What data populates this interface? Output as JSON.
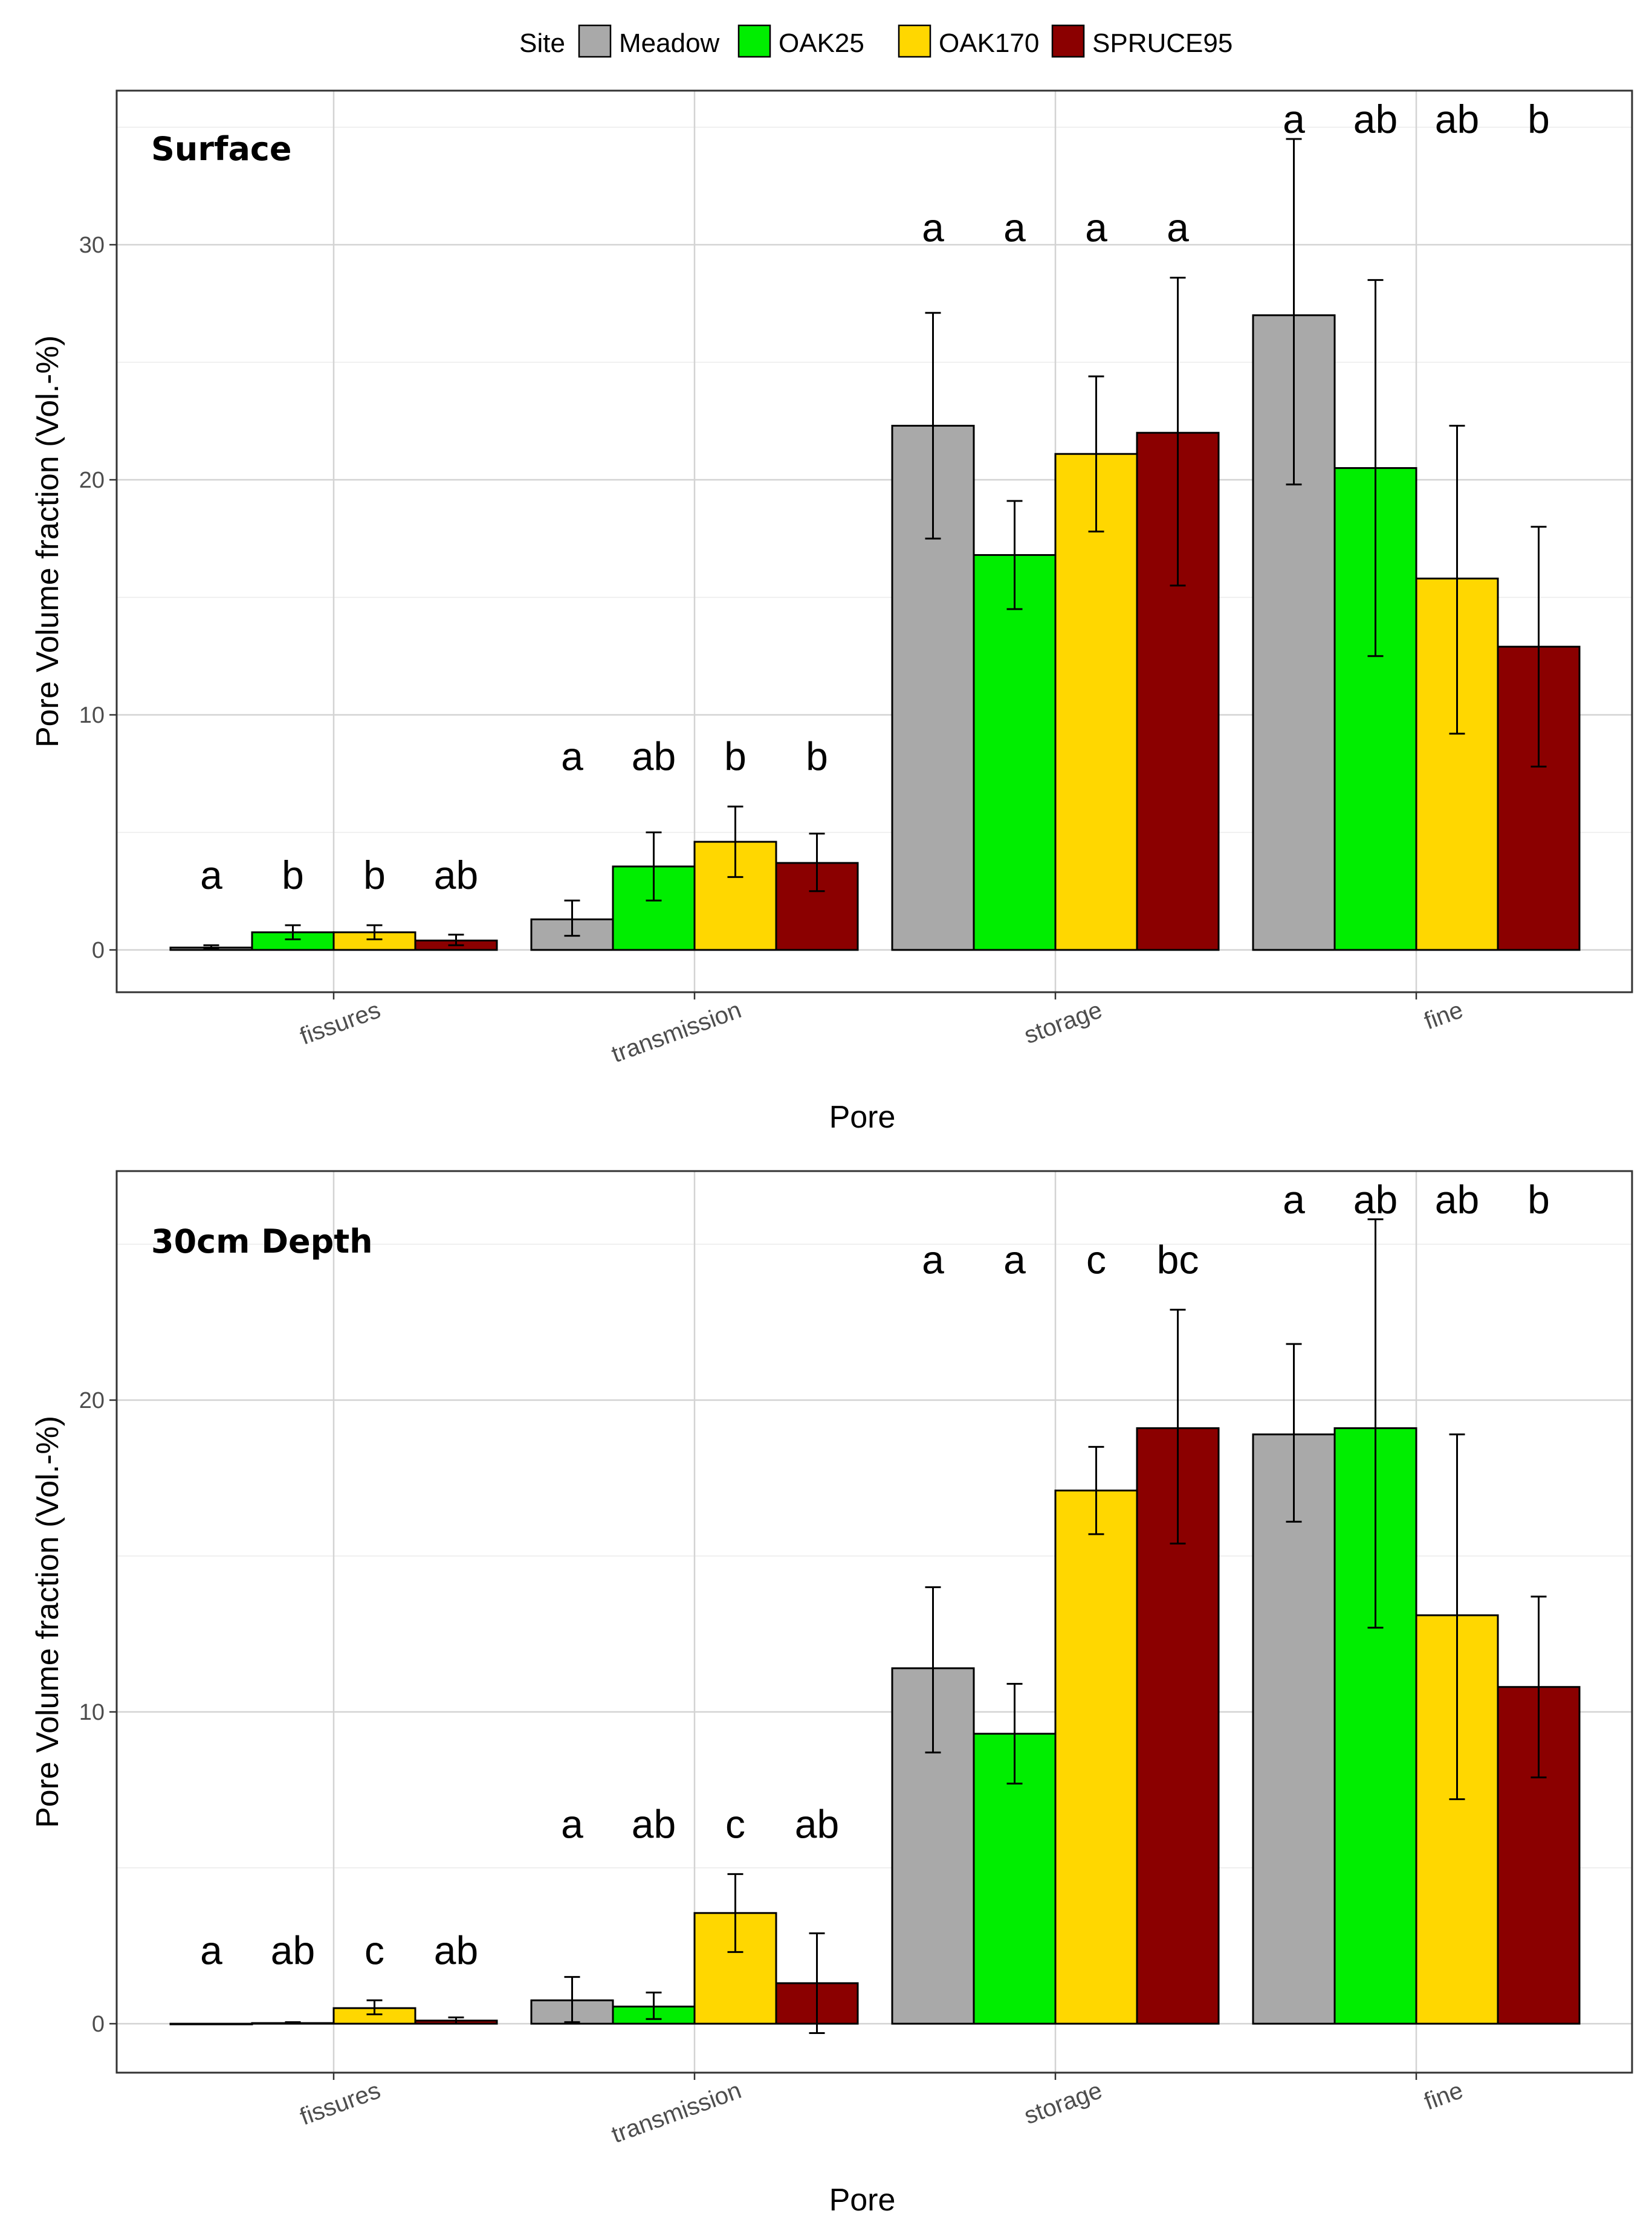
{
  "legend": {
    "title": "Site",
    "items": [
      {
        "name": "Meadow",
        "color": "#a9a9a9"
      },
      {
        "name": "OAK25",
        "color": "#00ee00"
      },
      {
        "name": "OAK170",
        "color": "#ffd700"
      },
      {
        "name": "SPRUCE95",
        "color": "#8b0000"
      }
    ]
  },
  "chart_data": [
    {
      "type": "bar",
      "title": "Surface",
      "xlabel": "Pore",
      "ylabel": "Pore Volume fraction (Vol.-%)",
      "categories": [
        "fissures",
        "transmission",
        "storage",
        "fine"
      ],
      "ylim": [
        -1.7,
        36.5
      ],
      "yticks": [
        0,
        10,
        20,
        30
      ],
      "series": [
        {
          "name": "Meadow",
          "color": "#a9a9a9",
          "values": [
            0.1,
            1.3,
            22.3,
            27.0
          ],
          "err_low": [
            0.05,
            0.6,
            17.5,
            19.8
          ],
          "err_high": [
            0.2,
            2.1,
            27.1,
            34.5
          ]
        },
        {
          "name": "OAK25",
          "color": "#00ee00",
          "values": [
            0.75,
            3.55,
            16.8,
            20.5
          ],
          "err_low": [
            0.45,
            2.1,
            14.5,
            12.5
          ],
          "err_high": [
            1.05,
            5.0,
            19.1,
            28.5
          ]
        },
        {
          "name": "OAK170",
          "color": "#ffd700",
          "values": [
            0.75,
            4.6,
            21.1,
            15.8
          ],
          "err_low": [
            0.45,
            3.1,
            17.8,
            9.2
          ],
          "err_high": [
            1.05,
            6.1,
            24.4,
            22.3
          ]
        },
        {
          "name": "SPRUCE95",
          "color": "#8b0000",
          "values": [
            0.4,
            3.7,
            22.0,
            12.9
          ],
          "err_low": [
            0.2,
            2.5,
            15.5,
            7.8
          ],
          "err_high": [
            0.65,
            4.95,
            28.6,
            18.0
          ]
        }
      ],
      "significance_letters": [
        [
          "a",
          "b",
          "b",
          "ab"
        ],
        [
          "a",
          "ab",
          "b",
          "b"
        ],
        [
          "a",
          "a",
          "a",
          "a"
        ],
        [
          "a",
          "ab",
          "ab",
          "b"
        ]
      ]
    },
    {
      "type": "bar",
      "title": "30cm Depth",
      "xlabel": "Pore",
      "ylabel": "Pore Volume fraction (Vol.-%)",
      "categories": [
        "fissures",
        "transmission",
        "storage",
        "fine"
      ],
      "ylim": [
        -1.6,
        27.4
      ],
      "yticks": [
        0,
        10,
        20
      ],
      "series": [
        {
          "name": "Meadow",
          "color": "#a9a9a9",
          "values": [
            0.0,
            0.75,
            11.4,
            18.9
          ],
          "err_low": [
            0.0,
            0.05,
            8.7,
            16.1
          ],
          "err_high": [
            0.0,
            1.5,
            14.0,
            21.8
          ]
        },
        {
          "name": "OAK25",
          "color": "#00ee00",
          "values": [
            0.02,
            0.55,
            9.3,
            19.1
          ],
          "err_low": [
            0.0,
            0.15,
            7.7,
            12.7
          ],
          "err_high": [
            0.05,
            1.0,
            10.9,
            25.8
          ]
        },
        {
          "name": "OAK170",
          "color": "#ffd700",
          "values": [
            0.5,
            3.55,
            17.1,
            13.1
          ],
          "err_low": [
            0.3,
            2.3,
            15.7,
            7.2
          ],
          "err_high": [
            0.75,
            4.8,
            18.5,
            18.9
          ]
        },
        {
          "name": "SPRUCE95",
          "color": "#8b0000",
          "values": [
            0.1,
            1.3,
            19.1,
            10.8
          ],
          "err_low": [
            0.0,
            -0.3,
            15.4,
            7.9
          ],
          "err_high": [
            0.2,
            2.9,
            22.9,
            13.7
          ]
        }
      ],
      "significance_letters": [
        [
          "a",
          "ab",
          "c",
          "ab"
        ],
        [
          "a",
          "ab",
          "c",
          "ab"
        ],
        [
          "a",
          "a",
          "c",
          "bc"
        ],
        [
          "a",
          "ab",
          "ab",
          "b"
        ]
      ]
    }
  ]
}
